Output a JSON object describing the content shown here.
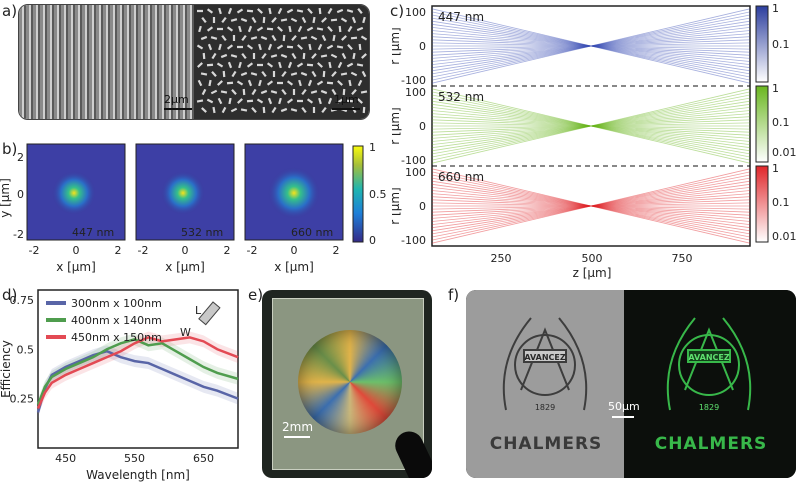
{
  "labels": {
    "a": "a)",
    "b": "b)",
    "c": "c)",
    "d": "d)",
    "e": "e)",
    "f": "f)"
  },
  "panel_a": {
    "scale_left": "2µm",
    "scale_right": "1µm"
  },
  "panel_b": {
    "maps": [
      {
        "wl": "447 nm",
        "color": "#b9b0e8"
      },
      {
        "wl": "532 nm",
        "color": "#d6e89a"
      },
      {
        "wl": "660 nm",
        "color": "#ff6a6a"
      }
    ],
    "xlabel": "x [µm]",
    "ylabel": "y [µm]",
    "xticks": [
      "-2",
      "0",
      "2"
    ],
    "yticks": [
      "2",
      "0",
      "-2"
    ],
    "cbar_ticks": [
      "1",
      "0.5",
      "0"
    ]
  },
  "panel_c": {
    "rows": [
      {
        "wl": "447 nm",
        "color": "#3b4fb5"
      },
      {
        "wl": "532 nm",
        "color": "#6ab61f"
      },
      {
        "wl": "660 nm",
        "color": "#e0262a"
      }
    ],
    "ylabel": "r [µm]",
    "xlabel": "z [µm]",
    "xticks": [
      "250",
      "500",
      "750"
    ],
    "yticks": [
      "100",
      "0",
      "-100"
    ],
    "cbar_ticks": [
      "1",
      "0.1",
      "0.01"
    ]
  },
  "chart_data": {
    "type": "line",
    "title": "",
    "xlabel": "Wavelength [nm]",
    "ylabel": "Efficiency",
    "xlim": [
      410,
      700
    ],
    "ylim": [
      0,
      0.8
    ],
    "xticks": [
      450,
      550,
      650
    ],
    "yticks": [
      0.25,
      0.5,
      0.75
    ],
    "x": [
      410,
      420,
      430,
      450,
      470,
      490,
      510,
      530,
      550,
      570,
      590,
      610,
      630,
      650,
      670,
      700
    ],
    "series": [
      {
        "name": "300nm x 100nm",
        "color": "#5965a7",
        "values": [
          0.18,
          0.3,
          0.37,
          0.41,
          0.44,
          0.47,
          0.49,
          0.46,
          0.44,
          0.43,
          0.4,
          0.37,
          0.34,
          0.31,
          0.29,
          0.25
        ]
      },
      {
        "name": "400nm x 140nm",
        "color": "#4f9d4e",
        "values": [
          0.22,
          0.31,
          0.36,
          0.4,
          0.43,
          0.46,
          0.5,
          0.53,
          0.55,
          0.52,
          0.53,
          0.49,
          0.45,
          0.41,
          0.38,
          0.35
        ]
      },
      {
        "name": "450nm x 150nm",
        "color": "#e34a54",
        "values": [
          0.2,
          0.28,
          0.33,
          0.37,
          0.4,
          0.43,
          0.46,
          0.49,
          0.53,
          0.56,
          0.54,
          0.55,
          0.56,
          0.54,
          0.5,
          0.46
        ]
      }
    ],
    "legend_position": "top-left",
    "inset_labels": {
      "l": "L",
      "w": "W"
    }
  },
  "panel_e": {
    "scale": "2mm"
  },
  "panel_f": {
    "scale": "50µm",
    "logo_word": "CHALMERS",
    "seal_text": "AVANCEZ",
    "seal_year": "1829"
  }
}
